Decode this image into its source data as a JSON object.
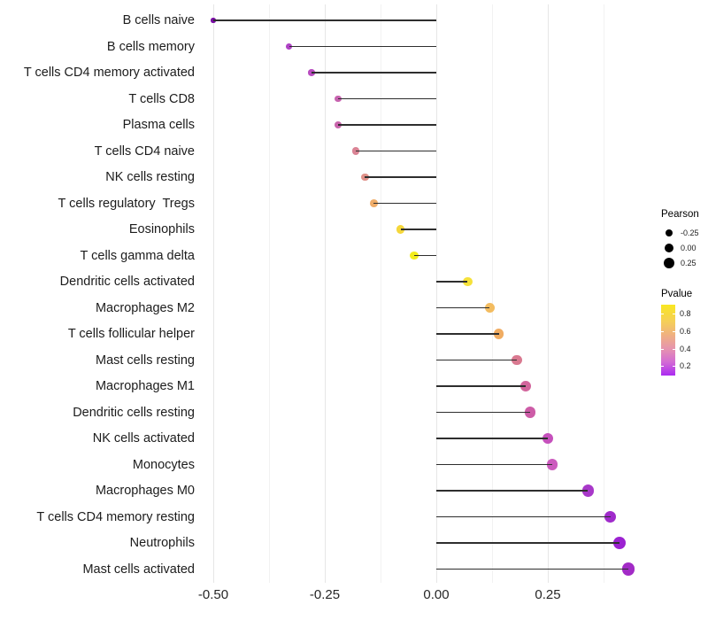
{
  "chart_data": {
    "type": "scatter",
    "subtype": "horizontal-lollipop",
    "title": "",
    "xlabel": "",
    "ylabel": "",
    "grid": "on",
    "background": "#ffffff",
    "stem_color": "#2e2e2e",
    "baseline": 0,
    "x_axis": {
      "range": [
        -0.546,
        0.477
      ],
      "ticks": [
        {
          "label": "-0.50",
          "value": -0.5
        },
        {
          "label": "-0.25",
          "value": -0.25
        },
        {
          "label": "0.00",
          "value": 0.0
        },
        {
          "label": "0.25",
          "value": 0.25
        }
      ],
      "minor": [
        -0.375,
        -0.125,
        0.125,
        0.375
      ]
    },
    "rows": [
      {
        "label": "B cells naive",
        "pearson": -0.5,
        "pvalue_est": 0.05,
        "color": "#7a0da6"
      },
      {
        "label": "B cells memory",
        "pearson": -0.33,
        "pvalue_est": 0.24,
        "color": "#af42c5"
      },
      {
        "label": "T cells CD4 memory activated",
        "pearson": -0.28,
        "pvalue_est": 0.27,
        "color": "#b94cc0"
      },
      {
        "label": "T cells CD8",
        "pearson": -0.22,
        "pvalue_est": 0.33,
        "color": "#c763af"
      },
      {
        "label": "Plasma cells",
        "pearson": -0.22,
        "pvalue_est": 0.34,
        "color": "#c965ac"
      },
      {
        "label": "T cells CD4 naive",
        "pearson": -0.18,
        "pvalue_est": 0.44,
        "color": "#da8495"
      },
      {
        "label": "NK cells resting",
        "pearson": -0.16,
        "pvalue_est": 0.47,
        "color": "#e0928a"
      },
      {
        "label": "T cells regulatory  Tregs",
        "pearson": -0.14,
        "pvalue_est": 0.62,
        "color": "#f0ad69"
      },
      {
        "label": "Eosinophils",
        "pearson": -0.08,
        "pvalue_est": 0.78,
        "color": "#f5d73b"
      },
      {
        "label": "T cells gamma delta",
        "pearson": -0.05,
        "pvalue_est": 0.86,
        "color": "#f3ed1c"
      },
      {
        "label": "Dendritic cells activated",
        "pearson": 0.07,
        "pvalue_est": 0.8,
        "color": "#f5e13a"
      },
      {
        "label": "Macrophages M2",
        "pearson": 0.12,
        "pvalue_est": 0.66,
        "color": "#f3bc60"
      },
      {
        "label": "T cells follicular helper",
        "pearson": 0.14,
        "pvalue_est": 0.62,
        "color": "#f0ac62"
      },
      {
        "label": "Mast cells resting",
        "pearson": 0.18,
        "pvalue_est": 0.42,
        "color": "#d97990"
      },
      {
        "label": "Macrophages M1",
        "pearson": 0.2,
        "pvalue_est": 0.36,
        "color": "#d2659c"
      },
      {
        "label": "Dendritic cells resting",
        "pearson": 0.21,
        "pvalue_est": 0.33,
        "color": "#cd5ca7"
      },
      {
        "label": "NK cells activated",
        "pearson": 0.25,
        "pvalue_est": 0.28,
        "color": "#c550bc"
      },
      {
        "label": "Monocytes",
        "pearson": 0.26,
        "pvalue_est": 0.3,
        "color": "#cc5bbe"
      },
      {
        "label": "Macrophages M0",
        "pearson": 0.34,
        "pvalue_est": 0.16,
        "color": "#a838c9"
      },
      {
        "label": "T cells CD4 memory resting",
        "pearson": 0.39,
        "pvalue_est": 0.14,
        "color": "#a02bcb"
      },
      {
        "label": "Neutrophils",
        "pearson": 0.41,
        "pvalue_est": 0.12,
        "color": "#9c22d1"
      },
      {
        "label": "Mast cells activated",
        "pearson": 0.43,
        "pvalue_est": 0.15,
        "color": "#a22bc6"
      }
    ],
    "legend_position": "right"
  },
  "legend_pearson": {
    "title": "Pearson",
    "dot_color": "#000000",
    "entries": [
      {
        "label": "-0.25",
        "diameter": 8
      },
      {
        "label": "0.00",
        "diameter": 10
      },
      {
        "label": "0.25",
        "diameter": 12
      }
    ]
  },
  "legend_pvalue": {
    "title": "Pvalue",
    "gradient_top_color": "#f9e721",
    "gradient_bottom_color": "#ab2bf2",
    "ticks": [
      {
        "label": "0.8",
        "offset": 10
      },
      {
        "label": "0.6",
        "offset": 30
      },
      {
        "label": "0.4",
        "offset": 49.5
      },
      {
        "label": "0.2",
        "offset": 69
      }
    ]
  }
}
